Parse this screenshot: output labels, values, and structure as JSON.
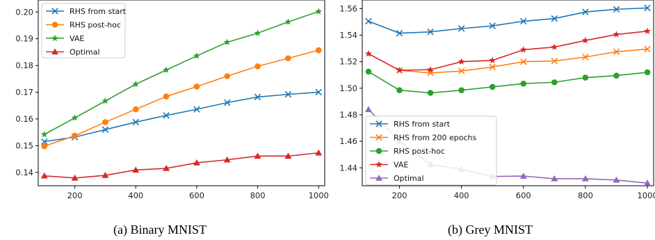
{
  "chart_data": [
    {
      "type": "line",
      "caption": "(a) Binary MNIST",
      "x": [
        100,
        200,
        300,
        400,
        500,
        600,
        700,
        800,
        900,
        1000
      ],
      "xticks": [
        200,
        400,
        600,
        800,
        1000
      ],
      "xlim": [
        80,
        1020
      ],
      "ylim": [
        0.135,
        0.2045
      ],
      "yticks": [
        "0.14",
        "0.15",
        "0.16",
        "0.17",
        "0.18",
        "0.19",
        "0.20"
      ],
      "legend_loc": "top-left",
      "series": [
        {
          "name": "RHS from start",
          "color": "#1f77b4",
          "marker": "x",
          "values": [
            0.1515,
            0.1532,
            0.156,
            0.1588,
            0.1613,
            0.1636,
            0.1661,
            0.1682,
            0.1692,
            0.17
          ]
        },
        {
          "name": "RHS post-hoc",
          "color": "#ff7f0e",
          "marker": "o",
          "values": [
            0.1498,
            0.1537,
            0.1588,
            0.1636,
            0.1684,
            0.1721,
            0.176,
            0.1797,
            0.1827,
            0.1857
          ]
        },
        {
          "name": "VAE",
          "color": "#2ca02c",
          "marker": "*",
          "values": [
            0.1542,
            0.1604,
            0.1667,
            0.173,
            0.1783,
            0.1836,
            0.1887,
            0.1921,
            0.1963,
            0.2002
          ]
        },
        {
          "name": "Optimal",
          "color": "#d62728",
          "marker": "^",
          "values": [
            0.1387,
            0.1379,
            0.1389,
            0.1409,
            0.1415,
            0.1436,
            0.1447,
            0.1461,
            0.1461,
            0.1473
          ]
        }
      ]
    },
    {
      "type": "line",
      "caption": "(b) Grey MNIST",
      "x": [
        100,
        200,
        300,
        400,
        500,
        600,
        700,
        800,
        900,
        1000
      ],
      "xticks": [
        200,
        400,
        600,
        800,
        1000
      ],
      "xlim": [
        80,
        1020
      ],
      "ylim": [
        1.4265,
        1.5665
      ],
      "yticks": [
        "1.44",
        "1.46",
        "1.48",
        "1.50",
        "1.52",
        "1.54",
        "1.56"
      ],
      "legend_loc": "bottom-left",
      "series": [
        {
          "name": "RHS from start",
          "color": "#1f77b4",
          "marker": "x",
          "values": [
            1.5505,
            1.5415,
            1.5425,
            1.545,
            1.547,
            1.5505,
            1.5525,
            1.5575,
            1.5595,
            1.5605
          ]
        },
        {
          "name": "RHS from 200 epochs",
          "color": "#ff7f0e",
          "marker": "x",
          "values": [
            null,
            1.5135,
            1.5115,
            1.513,
            1.516,
            1.52,
            1.5205,
            1.5235,
            1.5275,
            1.5295
          ]
        },
        {
          "name": "RHS post-hoc",
          "color": "#2ca02c",
          "marker": "o",
          "values": [
            1.5125,
            1.4985,
            1.4965,
            1.4985,
            1.501,
            1.5035,
            1.5045,
            1.508,
            1.5095,
            1.512
          ]
        },
        {
          "name": "VAE",
          "color": "#d62728",
          "marker": "*",
          "values": [
            1.526,
            1.5135,
            1.514,
            1.52,
            1.521,
            1.529,
            1.531,
            1.536,
            1.5405,
            1.543
          ]
        },
        {
          "name": "Optimal",
          "color": "#9467bd",
          "marker": "^",
          "values": [
            1.484,
            1.46,
            1.4425,
            1.439,
            1.4335,
            1.4338,
            1.4318,
            1.4318,
            1.4308,
            1.4285
          ]
        }
      ]
    }
  ]
}
